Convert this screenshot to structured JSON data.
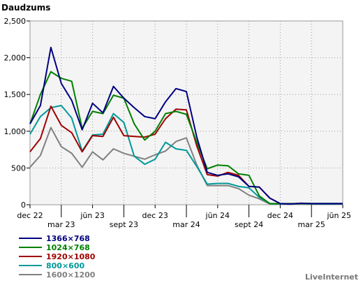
{
  "chart_data": {
    "type": "line",
    "title": "Daudzums",
    "credit": "LiveInternet",
    "ylim": [
      0,
      2500
    ],
    "y_ticks": [
      0,
      500,
      1000,
      1500,
      2000,
      2500
    ],
    "y_tick_labels": [
      "0",
      "500",
      "1,000",
      "1,500",
      "2,000",
      "2,500"
    ],
    "x_range": [
      0,
      30
    ],
    "x_ticks": [
      {
        "x": 0,
        "label": "dec 22",
        "row": 1
      },
      {
        "x": 3,
        "label": "mar 23",
        "row": 2
      },
      {
        "x": 6,
        "label": "jūn 23",
        "row": 1
      },
      {
        "x": 9,
        "label": "sept 23",
        "row": 2
      },
      {
        "x": 12,
        "label": "dec 23",
        "row": 1
      },
      {
        "x": 15,
        "label": "mar 24",
        "row": 2
      },
      {
        "x": 18,
        "label": "jūn 24",
        "row": 1
      },
      {
        "x": 21,
        "label": "sept 24",
        "row": 2
      },
      {
        "x": 24,
        "label": "dec 24",
        "row": 1
      },
      {
        "x": 27,
        "label": "mar 25",
        "row": 2
      },
      {
        "x": 30,
        "label": "jūn 25",
        "row": 1
      }
    ],
    "grid": true,
    "legend_position": "bottom-left",
    "series": [
      {
        "name": "1366×768",
        "color": "#000080",
        "values": [
          1100,
          1350,
          2140,
          1650,
          1420,
          1020,
          1380,
          1250,
          1610,
          1450,
          1320,
          1200,
          1170,
          1400,
          1580,
          1540,
          920,
          440,
          400,
          420,
          380,
          250,
          240,
          90,
          15,
          10,
          20,
          15,
          15,
          15,
          15
        ]
      },
      {
        "name": "1024×768",
        "color": "#008000",
        "values": [
          1100,
          1500,
          1810,
          1720,
          1680,
          1040,
          1270,
          1240,
          1490,
          1450,
          1100,
          880,
          1000,
          1240,
          1270,
          1230,
          850,
          490,
          540,
          530,
          420,
          400,
          120,
          15,
          15,
          15,
          15,
          15,
          15,
          15,
          15
        ]
      },
      {
        "name": "1920×1080",
        "color": "#a00000",
        "values": [
          720,
          900,
          1340,
          1080,
          980,
          720,
          940,
          930,
          1190,
          940,
          930,
          920,
          960,
          1170,
          1300,
          1290,
          800,
          410,
          390,
          440,
          400,
          250,
          240,
          90,
          15,
          10,
          20,
          15,
          15,
          15,
          15
        ]
      },
      {
        "name": "800×600",
        "color": "#009999",
        "values": [
          960,
          1200,
          1320,
          1350,
          1180,
          730,
          950,
          960,
          1240,
          1120,
          660,
          550,
          620,
          850,
          760,
          740,
          520,
          280,
          290,
          290,
          250,
          230,
          100,
          15,
          10,
          10,
          15,
          10,
          10,
          10,
          10
        ]
      },
      {
        "name": "1600×1200",
        "color": "#808080",
        "values": [
          510,
          670,
          1050,
          790,
          700,
          510,
          720,
          610,
          760,
          700,
          660,
          620,
          680,
          730,
          860,
          910,
          540,
          260,
          260,
          260,
          220,
          130,
          80,
          10,
          10,
          10,
          10,
          10,
          10,
          10,
          10
        ]
      }
    ]
  }
}
